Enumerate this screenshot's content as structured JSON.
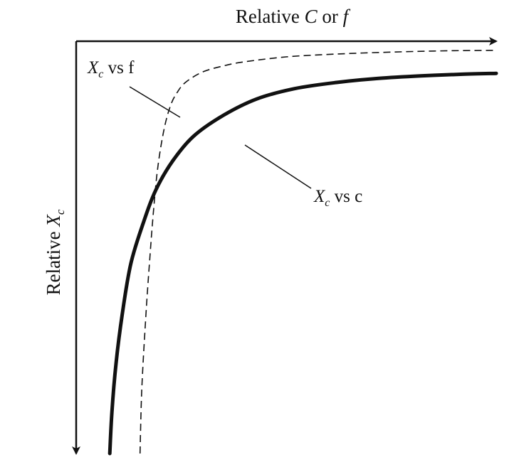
{
  "chart_data": {
    "type": "line",
    "xlabel": {
      "pre": "Relative ",
      "var": "C",
      "mid": " or ",
      "var2": "f"
    },
    "ylabel": {
      "pre": "Relative ",
      "var": "X",
      "sub": "c"
    },
    "xlim": [
      0,
      1
    ],
    "ylim": [
      0,
      1
    ],
    "y_axis_direction": "down",
    "x_axis_position": "top",
    "grid": false,
    "ticks": false,
    "series": [
      {
        "label": {
          "var": "X",
          "sub": "c",
          "rest": " vs f"
        },
        "line_style": "dashed",
        "color": "#111111",
        "x": [
          0.152,
          0.156,
          0.165,
          0.175,
          0.185,
          0.195,
          0.21,
          0.225,
          0.24,
          0.26,
          0.3,
          0.35,
          0.4,
          0.5,
          0.6,
          0.7,
          0.8,
          0.9,
          1.0
        ],
        "y": [
          0.0,
          0.15,
          0.32,
          0.47,
          0.6,
          0.7,
          0.79,
          0.845,
          0.875,
          0.9,
          0.925,
          0.94,
          0.95,
          0.962,
          0.968,
          0.972,
          0.975,
          0.977,
          0.978
        ]
      },
      {
        "label": {
          "var": "X",
          "sub": "c",
          "rest": " vs c"
        },
        "line_style": "solid",
        "color": "#111111",
        "x": [
          0.08,
          0.085,
          0.095,
          0.11,
          0.13,
          0.16,
          0.19,
          0.23,
          0.28,
          0.35,
          0.43,
          0.52,
          0.62,
          0.72,
          0.82,
          0.92,
          1.0
        ],
        "y": [
          0.0,
          0.1,
          0.22,
          0.34,
          0.46,
          0.56,
          0.64,
          0.71,
          0.77,
          0.82,
          0.86,
          0.885,
          0.9,
          0.91,
          0.916,
          0.92,
          0.922
        ]
      }
    ],
    "legend": "labels-on-curves"
  }
}
